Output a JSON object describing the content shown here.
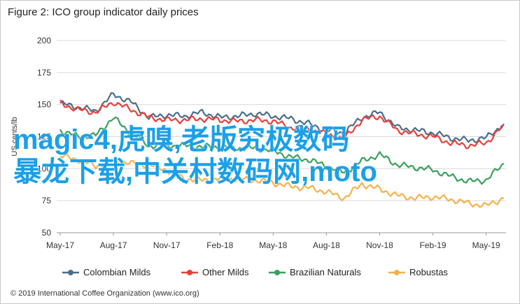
{
  "chart_data": {
    "type": "line",
    "title": "Figure 2: ICO group indicator daily prices",
    "ylabel": "US cents/lb",
    "xlabel": "",
    "ylim": [
      50,
      200
    ],
    "yticks": [
      50,
      75,
      100,
      125,
      150,
      175,
      200
    ],
    "xticks": [
      "May-17",
      "Aug-17",
      "Nov-17",
      "Feb-18",
      "May-18",
      "Aug-18",
      "Nov-18",
      "Feb-19",
      "May-19"
    ],
    "grid": true,
    "legend": "bottom",
    "x": [
      "2017-05",
      "2017-06",
      "2017-07",
      "2017-08",
      "2017-09",
      "2017-10",
      "2017-11",
      "2017-12",
      "2018-01",
      "2018-02",
      "2018-03",
      "2018-04",
      "2018-05",
      "2018-06",
      "2018-07",
      "2018-08",
      "2018-09",
      "2018-10",
      "2018-11",
      "2018-12",
      "2019-01",
      "2019-02",
      "2019-03",
      "2019-04",
      "2019-05",
      "2019-06"
    ],
    "series": [
      {
        "name": "Colombian Milds",
        "color": "#4a6f8a",
        "values": [
          151,
          148,
          145,
          158,
          152,
          140,
          142,
          141,
          144,
          140,
          141,
          143,
          141,
          139,
          135,
          130,
          128,
          140,
          144,
          132,
          130,
          128,
          124,
          122,
          124,
          135
        ]
      },
      {
        "name": "Other Milds",
        "color": "#e8403a",
        "values": [
          151,
          146,
          144,
          152,
          146,
          140,
          138,
          138,
          139,
          138,
          137,
          138,
          137,
          132,
          131,
          127,
          123,
          138,
          141,
          130,
          127,
          125,
          120,
          118,
          120,
          134
        ]
      },
      {
        "name": "Brazilian Naturals",
        "color": "#3aa05c",
        "values": [
          130,
          125,
          126,
          140,
          127,
          118,
          118,
          118,
          117,
          117,
          116,
          116,
          114,
          109,
          107,
          102,
          97,
          106,
          111,
          103,
          101,
          99,
          94,
          90,
          91,
          104
        ]
      },
      {
        "name": "Robustas",
        "color": "#f5b24a",
        "values": [
          110,
          107,
          102,
          106,
          104,
          103,
          99,
          92,
          91,
          92,
          92,
          91,
          89,
          86,
          85,
          82,
          77,
          88,
          84,
          79,
          77,
          78,
          76,
          73,
          71,
          77
        ]
      }
    ]
  },
  "source": "© 2019 International Coffee Organization (www.ico.org)",
  "overlay": {
    "line1": "magic4,虎嗅,老版究极数码",
    "line2": "暴龙下载,中关村数码网,moto"
  }
}
